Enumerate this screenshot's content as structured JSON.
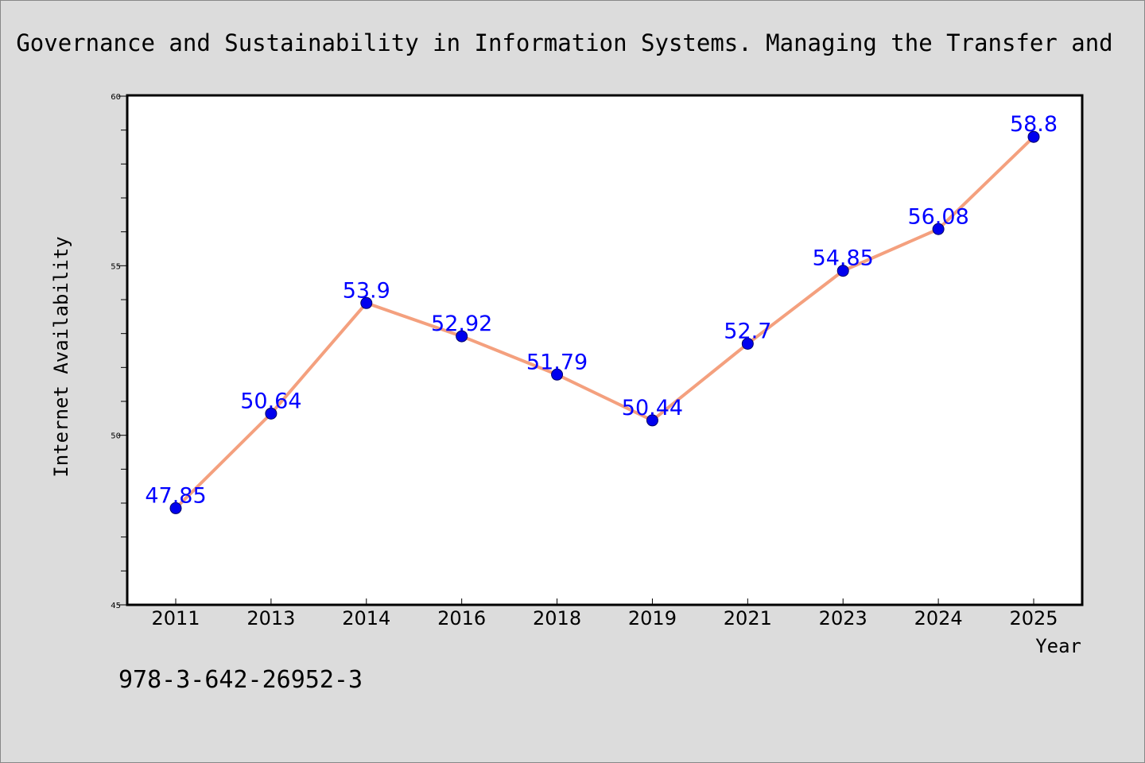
{
  "chart_data": {
    "type": "line",
    "title": "Governance and Sustainability in Information Systems. Managing the Transfer and",
    "xlabel": "Year",
    "ylabel": "Internet Availability",
    "annotation": "978-3-642-26952-3",
    "categories": [
      "2011",
      "2013",
      "2014",
      "2016",
      "2018",
      "2019",
      "2021",
      "2023",
      "2024",
      "2025"
    ],
    "series": [
      {
        "values": [
          47.85,
          50.64,
          53.9,
          52.92,
          51.79,
          50.44,
          52.7,
          54.85,
          56.08,
          58.8
        ],
        "labels": [
          "47.85",
          "50.64",
          "53.9",
          "52.92",
          "51.79",
          "50.44",
          "52.7",
          "54.85",
          "56.08",
          "58.8"
        ],
        "line_color": "#f4a07e",
        "marker_color": "#0000ee",
        "label_color": "#0000ff"
      }
    ],
    "ylim": [
      45,
      60
    ],
    "yticks": [
      "45",
      "50",
      "55",
      "60"
    ],
    "grid": false,
    "legend": "none",
    "colors": {
      "background": "#dcdcdc",
      "plot_background": "#ffffff",
      "axis": "#000000"
    }
  }
}
